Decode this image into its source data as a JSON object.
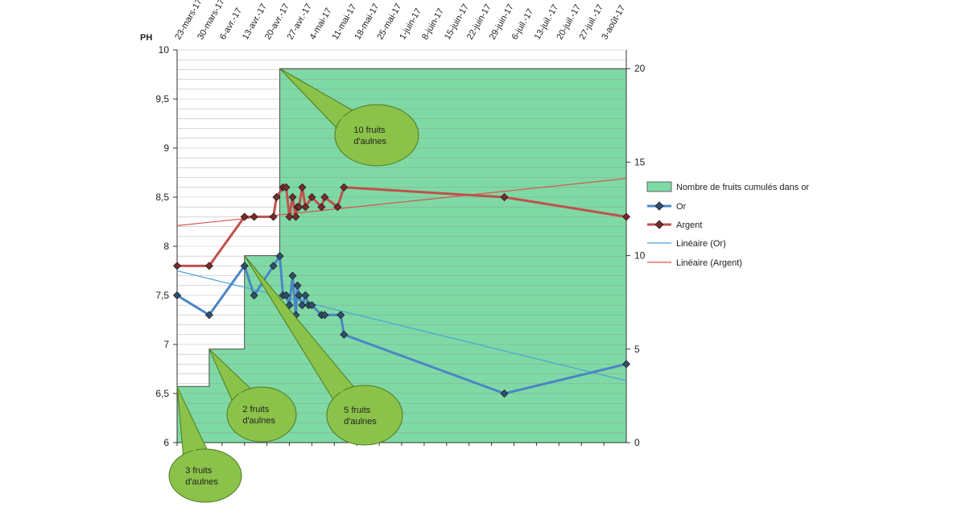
{
  "chart_data": {
    "type": "line",
    "title": "",
    "ylabel": "PH",
    "y2label": "",
    "ylim": [
      6,
      10
    ],
    "y2lim": [
      0,
      21
    ],
    "yticks": [
      "6",
      "6,5",
      "7",
      "7,5",
      "8",
      "8,5",
      "9",
      "9,5",
      "10"
    ],
    "y2ticks": [
      "0",
      "5",
      "10",
      "15",
      "20"
    ],
    "x_labels": [
      "23-mars-17",
      "30-mars-17",
      "6-avr.-17",
      "13-avr.-17",
      "20-avr.-17",
      "27-avr.-17",
      "4-mai-17",
      "11-mai-17",
      "18-mai-17",
      "25-mai-17",
      "1-juin-17",
      "8-juin-17",
      "15-juin-17",
      "22-juin-17",
      "29-juin-17",
      "6-juil.-17",
      "13-juil.-17",
      "20-juil.-17",
      "27-juil.-17",
      "3-août-17"
    ],
    "x_start_day": 0,
    "x_end_day": 140,
    "area_series": {
      "name": "Nombre de fruits cumulés dans or",
      "color": "#7ed9a4",
      "steps": [
        [
          0,
          3
        ],
        [
          10,
          5
        ],
        [
          21,
          10
        ],
        [
          32,
          20
        ],
        [
          140,
          20
        ]
      ]
    },
    "series": [
      {
        "name": "Or",
        "color": "#4a86c5",
        "days": [
          0,
          10,
          21,
          24,
          30,
          32,
          33,
          34,
          35,
          36,
          37,
          37.5,
          38,
          39,
          40,
          41,
          42,
          45,
          46,
          51,
          52,
          102,
          140
        ],
        "values": [
          7.5,
          7.3,
          7.8,
          7.5,
          7.8,
          7.9,
          7.5,
          7.5,
          7.4,
          7.7,
          7.3,
          7.6,
          7.5,
          7.4,
          7.5,
          7.4,
          7.4,
          7.3,
          7.3,
          7.3,
          7.1,
          6.5,
          6.8
        ]
      },
      {
        "name": "Argent",
        "color": "#c0504d",
        "days": [
          0,
          10,
          21,
          24,
          30,
          31,
          33,
          34,
          35,
          36,
          37,
          37.5,
          38,
          39,
          40,
          42,
          45,
          46,
          50,
          52,
          102,
          140
        ],
        "values": [
          7.8,
          7.8,
          8.3,
          8.3,
          8.3,
          8.5,
          8.6,
          8.6,
          8.3,
          8.5,
          8.3,
          8.4,
          8.4,
          8.6,
          8.4,
          8.5,
          8.4,
          8.5,
          8.4,
          8.6,
          8.5,
          8.3
        ]
      }
    ],
    "trendlines": [
      {
        "name": "Linéaire (Or)",
        "color": "#4ba3d6",
        "start": 7.75,
        "end": 6.63
      },
      {
        "name": "Linéaire (Argent)",
        "color": "#d9534f",
        "start": 8.21,
        "end": 8.69
      }
    ],
    "legend": {
      "position": "right",
      "entries": [
        "Nombre de fruits cumulés dans or",
        "Or",
        "Argent",
        "Linéaire (Or)",
        "Linéaire (Argent)"
      ]
    },
    "annotations": [
      {
        "id": "c3",
        "lines": [
          "3 fruits",
          "d'aulnes"
        ],
        "target_day": 0,
        "target_y2": 3
      },
      {
        "id": "c2",
        "lines": [
          "2 fruits",
          "d'aulnes"
        ],
        "target_day": 10,
        "target_y2": 5
      },
      {
        "id": "c5",
        "lines": [
          "5 fruits",
          "d'aulnes"
        ],
        "target_day": 21,
        "target_y2": 10
      },
      {
        "id": "c10",
        "lines": [
          "10 fruits",
          "d'aulnes"
        ],
        "target_day": 32,
        "target_y2": 20
      }
    ],
    "grid": true
  }
}
